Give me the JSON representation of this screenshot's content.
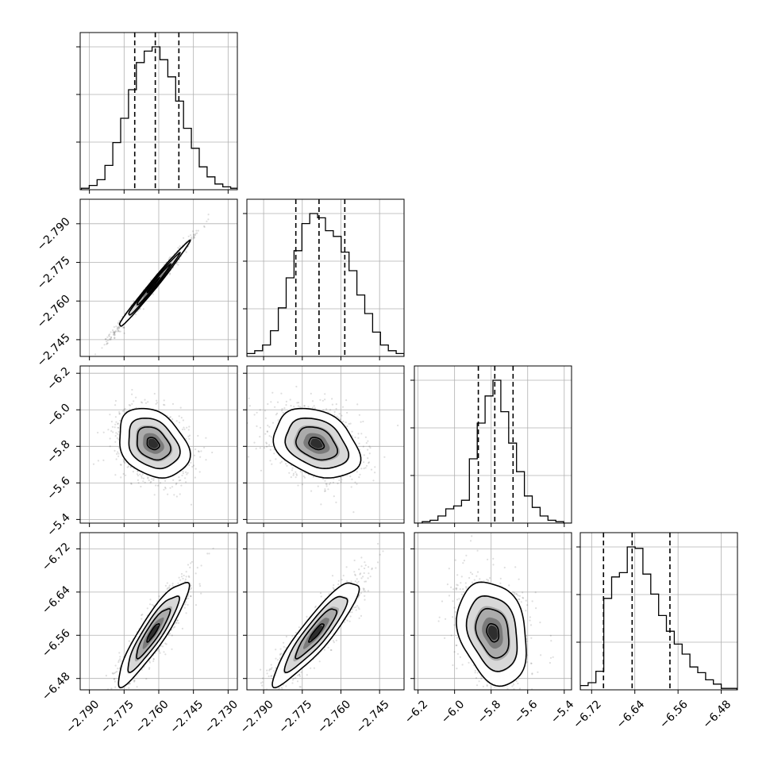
{
  "chart_data": {
    "type": "corner",
    "parameters": 4,
    "grid": true,
    "x_ticks": [
      [
        "−2.790",
        "−2.775",
        "−2.760",
        "−2.745",
        "−2.730"
      ],
      [
        "−2.790",
        "−2.775",
        "−2.760",
        "−2.745"
      ],
      [
        "−6.2",
        "−6.0",
        "−5.8",
        "−5.6",
        "−5.4"
      ],
      [
        "−6.72",
        "−6.64",
        "−6.56",
        "−6.48"
      ]
    ],
    "y_ticks": [
      [],
      [
        "−2.745",
        "−2.760",
        "−2.775",
        "−2.790"
      ],
      [
        "−5.4",
        "−5.6",
        "−5.8",
        "−6.0",
        "−6.2"
      ],
      [
        "−6.48",
        "−6.56",
        "−6.64",
        "−6.72"
      ]
    ],
    "params": [
      {
        "range": [
          -2.794,
          -2.726
        ],
        "tick_values": [
          -2.79,
          -2.775,
          -2.76,
          -2.745,
          -2.73
        ],
        "quantiles": [
          -2.7704,
          -2.7615,
          -2.7513
        ],
        "hist_edges_start": -2.7935,
        "hist_bin_width": 0.0034,
        "hist_counts": [
          0.01,
          0.03,
          0.07,
          0.17,
          0.33,
          0.5,
          0.7,
          0.89,
          0.97,
          1.0,
          0.91,
          0.79,
          0.62,
          0.43,
          0.29,
          0.16,
          0.09,
          0.04,
          0.02,
          0.01
        ]
      },
      {
        "range": [
          -2.7965,
          -2.7355
        ],
        "tick_values": [
          -2.79,
          -2.775,
          -2.76,
          -2.745
        ],
        "quantiles": [
          -2.7775,
          -2.7685,
          -2.7585
        ],
        "hist_edges_start": -2.7965,
        "hist_bin_width": 0.00305,
        "hist_counts": [
          0.02,
          0.04,
          0.08,
          0.18,
          0.34,
          0.55,
          0.74,
          0.93,
          1.0,
          0.97,
          0.88,
          0.84,
          0.73,
          0.6,
          0.43,
          0.3,
          0.17,
          0.08,
          0.04,
          0.02
        ]
      },
      {
        "range": [
          -6.22,
          -5.36
        ],
        "tick_values": [
          -6.2,
          -6.0,
          -5.8,
          -5.6,
          -5.4
        ],
        "quantiles": [
          -5.87,
          -5.78,
          -5.68
        ],
        "hist_edges_start": -6.22,
        "hist_bin_width": 0.043,
        "hist_counts": [
          0.0,
          0.01,
          0.02,
          0.05,
          0.1,
          0.12,
          0.16,
          0.45,
          0.7,
          0.89,
          1.0,
          0.78,
          0.56,
          0.36,
          0.19,
          0.11,
          0.05,
          0.02,
          0.01,
          0.0
        ]
      },
      {
        "range": [
          -6.741,
          -6.45
        ],
        "tick_values": [
          -6.72,
          -6.64,
          -6.56,
          -6.48
        ],
        "quantiles": [
          -6.698,
          -6.645,
          -6.575
        ],
        "hist_edges_start": -6.741,
        "hist_bin_width": 0.0145,
        "hist_counts": [
          0.03,
          0.05,
          0.13,
          0.64,
          0.79,
          0.82,
          1.0,
          0.99,
          0.81,
          0.67,
          0.52,
          0.41,
          0.32,
          0.25,
          0.16,
          0.12,
          0.07,
          0.04,
          0.01,
          0.01
        ]
      }
    ]
  }
}
